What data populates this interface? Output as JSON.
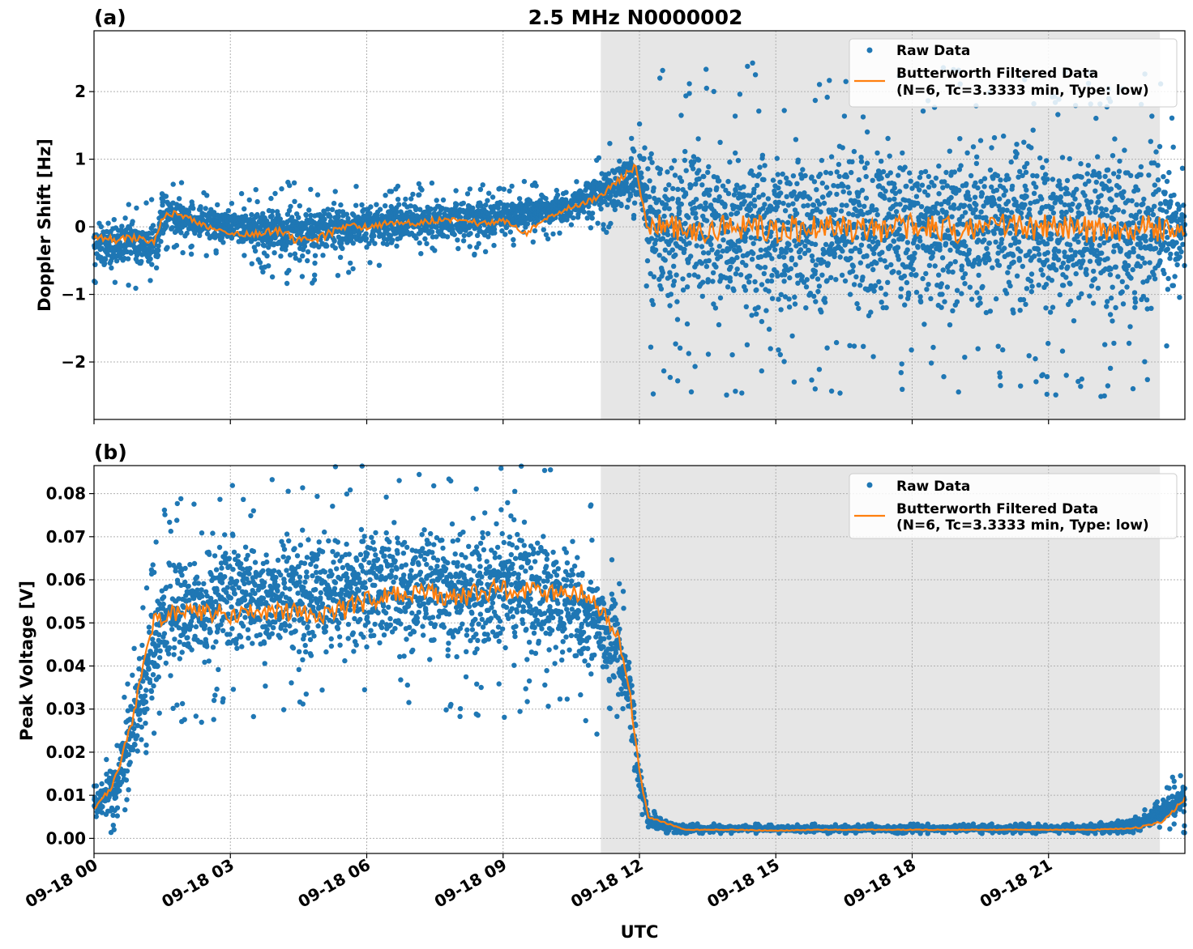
{
  "chart_data": {
    "title": "2.5 MHz N0000002",
    "xlabel": "UTC",
    "x_ticks": [
      "09-18 00",
      "09-18 03",
      "09-18 06",
      "09-18 09",
      "09-18 12",
      "09-18 15",
      "09-18 18",
      "09-18 21"
    ],
    "x_tick_hours": [
      0,
      3,
      6,
      9,
      12,
      15,
      18,
      21
    ],
    "xlim_hours": [
      0,
      24
    ],
    "shaded_region_hours": [
      11.15,
      23.45
    ],
    "grid": true,
    "legend_position": "top-right",
    "legend": {
      "raw": "Raw Data",
      "filtered_line1": "Butterworth Filtered Data",
      "filtered_line2": "(N=6, Tc=3.3333 min, Type: low)"
    },
    "colors": {
      "raw": "#1f77b4",
      "filtered": "#ff7f0e",
      "shade": "#e6e6e6",
      "grid": "#b0b0b0"
    },
    "panels": [
      {
        "label": "(a)",
        "type": "scatter+line",
        "ylabel": "Doppler Shift [Hz]",
        "ylim": [
          -2.85,
          2.9
        ],
        "y_ticks": [
          -2,
          -1,
          0,
          1,
          2
        ],
        "y_tick_labels": [
          "−2",
          "−1",
          "0",
          "1",
          "2"
        ],
        "filtered_series": {
          "name": "Butterworth Filtered Data",
          "hours": [
            0,
            0.5,
            1.0,
            1.3,
            1.5,
            1.8,
            2.0,
            2.5,
            3.0,
            3.5,
            4.0,
            4.5,
            5.0,
            5.5,
            6.0,
            6.5,
            7.0,
            7.5,
            8.0,
            8.5,
            9.0,
            9.5,
            10.0,
            10.5,
            11.0,
            11.5,
            11.9,
            12.2,
            13,
            14,
            15,
            16,
            17,
            18,
            19,
            20,
            21,
            22,
            23,
            24
          ],
          "values": [
            -0.15,
            -0.2,
            -0.15,
            -0.25,
            0.15,
            0.2,
            0.15,
            0.0,
            -0.1,
            -0.1,
            -0.05,
            -0.2,
            -0.15,
            0.0,
            0.0,
            0.05,
            0.05,
            0.1,
            0.1,
            0.05,
            0.1,
            -0.1,
            0.15,
            0.3,
            0.4,
            0.65,
            0.9,
            0.0,
            -0.05,
            0.0,
            -0.05,
            0.0,
            -0.05,
            0.0,
            -0.05,
            0.0,
            0.0,
            -0.05,
            0.0,
            -0.05
          ]
        },
        "raw_envelope": {
          "hours": [
            0,
            1.4,
            1.5,
            3.0,
            4.5,
            6.0,
            9.0,
            10.5,
            11.5,
            12.0,
            12.3,
            23.45,
            24
          ],
          "upper": [
            0.2,
            0.2,
            0.55,
            0.3,
            0.45,
            0.45,
            0.5,
            0.6,
            1.1,
            1.3,
            1.6,
            1.6,
            0.5
          ],
          "lower": [
            -0.7,
            -0.7,
            -0.2,
            -0.3,
            -0.7,
            -0.4,
            -0.2,
            0.0,
            0.15,
            0.25,
            -1.7,
            -1.7,
            -0.5
          ]
        }
      },
      {
        "label": "(b)",
        "type": "scatter+line",
        "ylabel": "Peak Voltage [V]",
        "ylim": [
          -0.0035,
          0.0865
        ],
        "y_ticks": [
          0.0,
          0.01,
          0.02,
          0.03,
          0.04,
          0.05,
          0.06,
          0.07,
          0.08
        ],
        "y_tick_labels": [
          "0.00",
          "0.01",
          "0.02",
          "0.03",
          "0.04",
          "0.05",
          "0.06",
          "0.07",
          "0.08"
        ],
        "filtered_series": {
          "name": "Butterworth Filtered Data",
          "hours": [
            0,
            0.4,
            0.8,
            1.0,
            1.3,
            1.6,
            2.0,
            3.0,
            4.0,
            5.0,
            5.5,
            6.0,
            7.0,
            8.0,
            9.0,
            10.0,
            10.5,
            11.0,
            11.5,
            11.8,
            12.0,
            12.2,
            13,
            14,
            15,
            16,
            18,
            20,
            22,
            23,
            23.5,
            24
          ],
          "values": [
            0.007,
            0.012,
            0.025,
            0.035,
            0.05,
            0.052,
            0.053,
            0.052,
            0.053,
            0.052,
            0.053,
            0.055,
            0.057,
            0.056,
            0.058,
            0.057,
            0.058,
            0.055,
            0.048,
            0.033,
            0.015,
            0.005,
            0.002,
            0.002,
            0.0018,
            0.002,
            0.002,
            0.002,
            0.002,
            0.0025,
            0.004,
            0.009
          ]
        },
        "raw_envelope": {
          "hours": [
            0,
            0.5,
            1.0,
            1.5,
            2.0,
            3.0,
            6.0,
            9.0,
            10.5,
            11.5,
            11.8,
            12.0,
            12.2,
            13,
            22,
            23,
            24
          ],
          "upper": [
            0.012,
            0.02,
            0.045,
            0.068,
            0.072,
            0.074,
            0.078,
            0.078,
            0.075,
            0.06,
            0.045,
            0.02,
            0.006,
            0.003,
            0.003,
            0.005,
            0.015
          ],
          "lower": [
            0.003,
            0.005,
            0.018,
            0.032,
            0.035,
            0.037,
            0.038,
            0.038,
            0.035,
            0.03,
            0.02,
            0.008,
            0.002,
            0.0015,
            0.0015,
            0.002,
            0.004
          ]
        }
      }
    ]
  }
}
